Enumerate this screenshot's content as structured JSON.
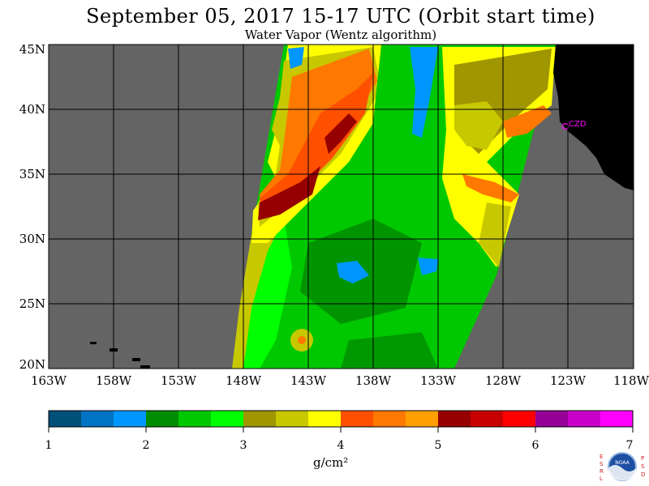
{
  "title": "September 05, 2017  15-17 UTC  (Orbit start time)",
  "subtitle": "Water Vapor (Wentz algorithm)",
  "map": {
    "lat_labels": [
      "45N",
      "40N",
      "35N",
      "30N",
      "25N",
      "20N"
    ],
    "lon_labels": [
      "163W",
      "158W",
      "153W",
      "148W",
      "143W",
      "138W",
      "133W",
      "128W",
      "123W",
      "118W"
    ],
    "station_label": "CZD",
    "colors": {
      "no_data": "#646464",
      "land": "#000000",
      "station": "#ff00ff"
    }
  },
  "colorbar": {
    "tick_labels": [
      "1",
      "2",
      "3",
      "4",
      "5",
      "6",
      "7"
    ],
    "units": "g/cm²",
    "colors": [
      "#00507a",
      "#0073c2",
      "#0096ff",
      "#008c00",
      "#00c800",
      "#00ff00",
      "#a09600",
      "#c8c800",
      "#ffff00",
      "#ff5000",
      "#ff7800",
      "#ffa000",
      "#960000",
      "#c80000",
      "#ff0000",
      "#960096",
      "#c800c8",
      "#ff00ff"
    ]
  },
  "logo": {
    "left_letters": "ESRL",
    "right_letters": "PSD",
    "badge_text": "NOAA"
  }
}
